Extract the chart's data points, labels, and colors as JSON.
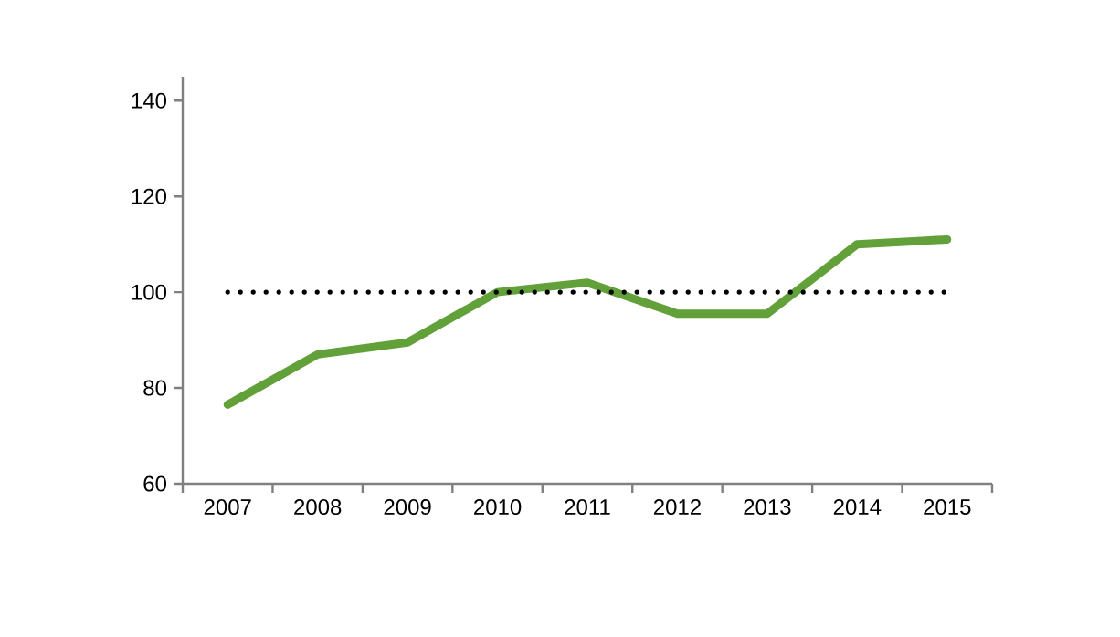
{
  "chart_data": {
    "type": "line",
    "categories": [
      "2007",
      "2008",
      "2009",
      "2010",
      "2011",
      "2012",
      "2013",
      "2014",
      "2015"
    ],
    "series": [
      {
        "color": "#62a03a",
        "values": [
          76.5,
          87,
          89.5,
          100,
          102,
          95.5,
          95.5,
          110,
          111
        ]
      }
    ],
    "ylim": [
      60,
      145
    ],
    "yticks": [
      60,
      80,
      100,
      120,
      140
    ],
    "ref_lines": [
      {
        "axis": "y",
        "value": 100,
        "color": "#000000",
        "line_style": "dotted"
      }
    ],
    "grid": false,
    "marker": "none",
    "line_style": "solid"
  }
}
